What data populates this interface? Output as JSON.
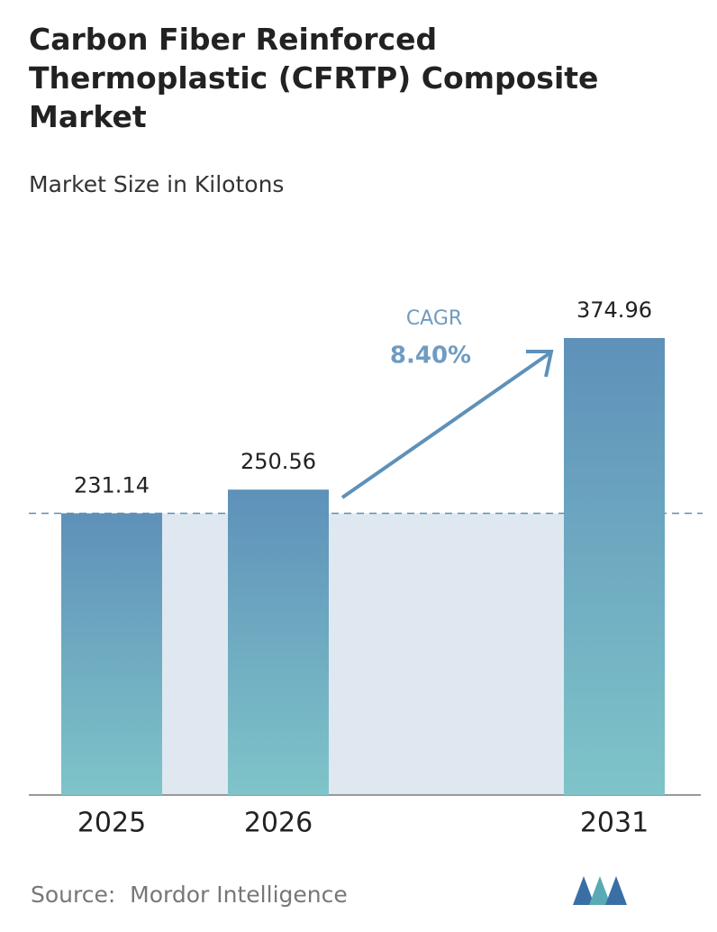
{
  "chart_data": {
    "type": "bar",
    "title": "Carbon Fiber Reinforced Thermoplastic (CFRTP) Composite Market",
    "subtitle": "Market Size in Kilotons",
    "categories": [
      "2025",
      "2026",
      "2031"
    ],
    "values": [
      231.14,
      250.56,
      374.96
    ],
    "color": "#5e91b9",
    "annotation": {
      "label": "CAGR",
      "value": "8.40%"
    },
    "source": "Source:  Mordor Intelligence"
  }
}
